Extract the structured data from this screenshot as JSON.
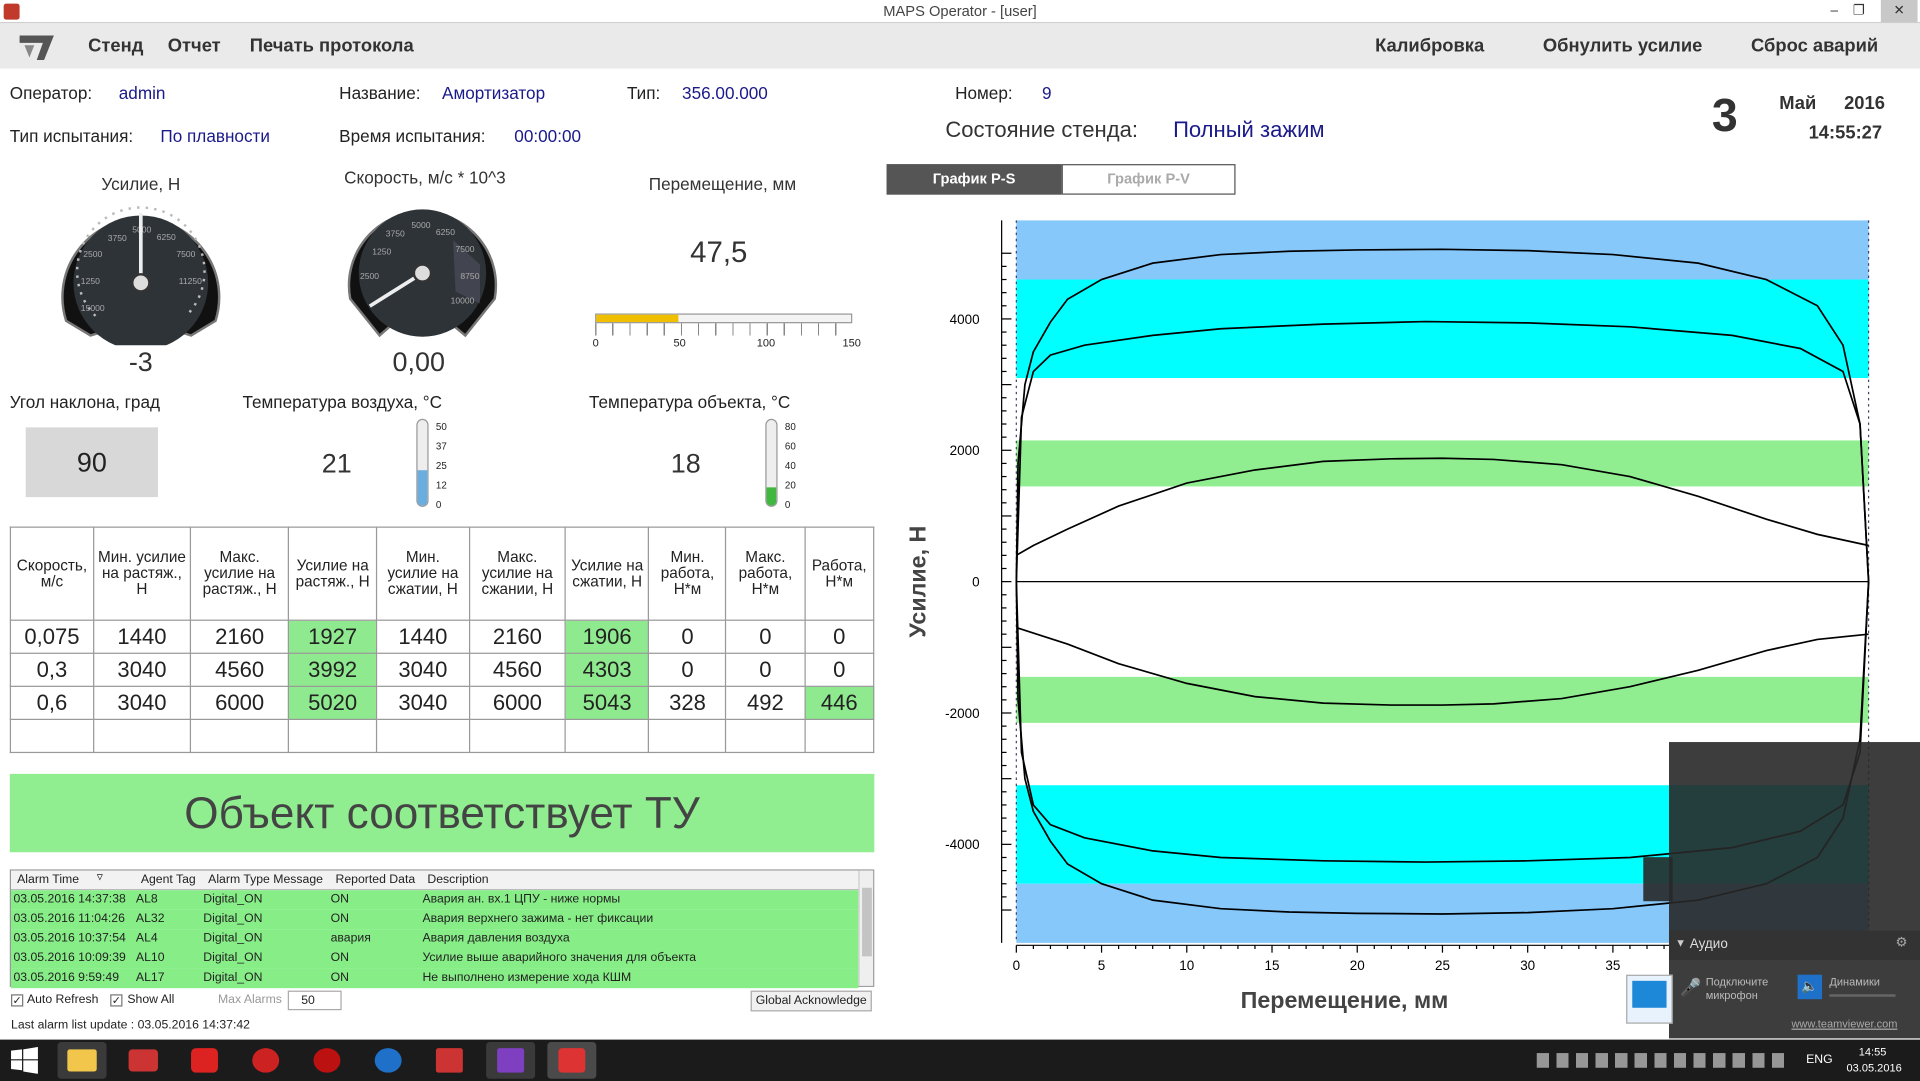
{
  "window": {
    "title": "MAPS Operator - [user]"
  },
  "menu": {
    "items": [
      "Стенд",
      "Отчет",
      "Печать протокола"
    ],
    "right": [
      "Калибровка",
      "Обнулить усилие",
      "Сброс аварий"
    ]
  },
  "info": {
    "operator_label": "Оператор:",
    "operator": "admin",
    "name_label": "Название:",
    "name": "Амортизатор",
    "type_label": "Тип:",
    "type": "356.00.000",
    "number_label": "Номер:",
    "number": "9",
    "test_type_label": "Тип испытания:",
    "test_type": "По плавности",
    "time_label": "Время испытания:",
    "time": "00:00:00",
    "state_label": "Состояние стенда:",
    "state": "Полный зажим"
  },
  "date": {
    "day": "3",
    "month": "Май",
    "year": "2016",
    "time": "14:55:27"
  },
  "gauges": {
    "force": {
      "title": "Усилие, Н",
      "value": "-3",
      "ticks": [
        "3750",
        "5000",
        "6250",
        "7500",
        "11250",
        "1250",
        "2500",
        "15000"
      ]
    },
    "speed": {
      "title": "Скорость, м/с * 10^3",
      "value": "0,00",
      "ticks": [
        "3750",
        "5000",
        "6250",
        "7500",
        "1250",
        "2500",
        "8750",
        "10000"
      ]
    },
    "move": {
      "title": "Перемещение, мм",
      "value": "47,5",
      "fill": 0.32,
      "ticks": [
        "0",
        "50",
        "100",
        "150"
      ]
    },
    "angle": {
      "title": "Угол наклона, град",
      "value": "90"
    },
    "air": {
      "title": "Температура воздуха, °C",
      "value": "21",
      "ticks": [
        "50",
        "37",
        "25",
        "12",
        "0"
      ],
      "fill": 0.42
    },
    "obj": {
      "title": "Температура объекта, °C",
      "value": "18",
      "ticks": [
        "80",
        "60",
        "40",
        "20",
        "0"
      ],
      "fill": 0.22
    }
  },
  "table": {
    "headers": [
      "Скорость, м/с",
      "Мин. усилие на растяж., Н",
      "Макс. усилие на растяж., Н",
      "Усилие на растяж., Н",
      "Мин. усилие на сжатии, Н",
      "Макс. усилие на сжании, Н",
      "Усилие на сжатии, Н",
      "Мин. работа, Н*м",
      "Макс. работа, Н*м",
      "Работа, Н*м"
    ],
    "rows": [
      [
        "0,075",
        "1440",
        "2160",
        "1927",
        "1440",
        "2160",
        "1906",
        "0",
        "0",
        "0"
      ],
      [
        "0,3",
        "3040",
        "4560",
        "3992",
        "3040",
        "4560",
        "4303",
        "0",
        "0",
        "0"
      ],
      [
        "0,6",
        "3040",
        "6000",
        "5020",
        "3040",
        "6000",
        "5043",
        "328",
        "492",
        "446"
      ],
      [
        "",
        "",
        "",
        "",
        "",
        "",
        "",
        "",
        "",
        ""
      ]
    ]
  },
  "verdict": "Объект соответствует ТУ",
  "alarms": {
    "headers": [
      "Alarm Time",
      "Agent Tag",
      "Alarm Type Message",
      "Reported Data",
      "Description"
    ],
    "rows": [
      [
        "03.05.2016 14:37:38",
        "AL8",
        "Digital_ON",
        "ON",
        "Авария ан. вх.1 ЦПУ - ниже нормы"
      ],
      [
        "03.05.2016 11:04:26",
        "AL32",
        "Digital_ON",
        "ON",
        "Авария верхнего зажима - нет фиксации"
      ],
      [
        "03.05.2016 10:37:54",
        "AL4",
        "Digital_ON",
        "авария",
        "Авария давления воздуха"
      ],
      [
        "03.05.2016 10:09:39",
        "AL10",
        "Digital_ON",
        "ON",
        "Усилие выше аварийного значения для объекта"
      ],
      [
        "03.05.2016 9:59:49",
        "AL17",
        "Digital_ON",
        "ON",
        "Не выполнено измерение хода КШМ"
      ]
    ],
    "auto_refresh": "Auto Refresh",
    "show_all": "Show All",
    "max_label": "Max Alarms",
    "max": "50",
    "ack": "Global Acknowledge",
    "last_update": "Last alarm list update : 03.05.2016 14:37:42"
  },
  "tabs": [
    "График P-S",
    "График P-V"
  ],
  "chart_data": {
    "type": "line",
    "xlabel": "Перемещение, мм",
    "ylabel": "Усилие, Н",
    "xlim": [
      0,
      50
    ],
    "ylim": [
      -5500,
      5500
    ],
    "xticks": [
      "0",
      "5",
      "10",
      "15",
      "20",
      "25",
      "30",
      "35"
    ],
    "yticks": [
      "4000",
      "2000",
      "0",
      "-2000",
      "-4000"
    ],
    "bands": [
      {
        "from": 4600,
        "to": 5500,
        "color": "#87c8fb"
      },
      {
        "from": 3100,
        "to": 4600,
        "color": "#00ffff"
      },
      {
        "from": 1450,
        "to": 2150,
        "color": "#90ee90"
      },
      {
        "from": -2150,
        "to": -1450,
        "color": "#90ee90"
      },
      {
        "from": -4600,
        "to": -3100,
        "color": "#00ffff"
      },
      {
        "from": -5500,
        "to": -4600,
        "color": "#87c8fb"
      }
    ],
    "series": [
      {
        "x": [
          0,
          0.1,
          0.5,
          1,
          2,
          3,
          5,
          8,
          12,
          16,
          20,
          25,
          30,
          35,
          40,
          44,
          47,
          48.5,
          49.5,
          50
        ],
        "y": [
          0,
          1800,
          3000,
          3500,
          3950,
          4300,
          4600,
          4850,
          4980,
          5030,
          5050,
          5060,
          5040,
          4980,
          4850,
          4600,
          4200,
          3600,
          2400,
          0
        ]
      },
      {
        "x": [
          0,
          0.3,
          1,
          2,
          4,
          8,
          12,
          18,
          24,
          30,
          36,
          42,
          46,
          48.5,
          49.5,
          50
        ],
        "y": [
          0,
          2500,
          3200,
          3450,
          3600,
          3750,
          3850,
          3920,
          3960,
          3940,
          3880,
          3750,
          3550,
          3200,
          2400,
          0
        ]
      },
      {
        "x": [
          0,
          1,
          3,
          6,
          10,
          14,
          18,
          22,
          25,
          28,
          32,
          36,
          40,
          44,
          47,
          50
        ],
        "y": [
          400,
          550,
          800,
          1150,
          1500,
          1700,
          1830,
          1870,
          1880,
          1860,
          1780,
          1600,
          1300,
          950,
          720,
          550
        ]
      },
      {
        "x": [
          0,
          0.1,
          0.5,
          1,
          2,
          3,
          5,
          8,
          12,
          16,
          20,
          25,
          30,
          35,
          40,
          44,
          47,
          48.5,
          49.5,
          50
        ],
        "y": [
          0,
          -1800,
          -3000,
          -3500,
          -3950,
          -4300,
          -4600,
          -4850,
          -4980,
          -5030,
          -5050,
          -5060,
          -5040,
          -4980,
          -4850,
          -4600,
          -4200,
          -3600,
          -2400,
          0
        ]
      },
      {
        "x": [
          0,
          0.3,
          1,
          2,
          4,
          8,
          12,
          18,
          24,
          30,
          36,
          42,
          46,
          48.5,
          49.5,
          50
        ],
        "y": [
          0,
          -2600,
          -3400,
          -3700,
          -3900,
          -4100,
          -4200,
          -4250,
          -4270,
          -4250,
          -4200,
          -4050,
          -3800,
          -3400,
          -2600,
          0
        ]
      },
      {
        "x": [
          0,
          3,
          6,
          10,
          14,
          18,
          22,
          25,
          28,
          32,
          36,
          40,
          44,
          47,
          50
        ],
        "y": [
          -700,
          -950,
          -1250,
          -1550,
          -1750,
          -1850,
          -1880,
          -1880,
          -1860,
          -1780,
          -1600,
          -1350,
          -1050,
          -880,
          -800
        ]
      }
    ]
  },
  "teamviewer": {
    "title": "Аудио",
    "mic": "Подключите микрофон",
    "spk": "Динамики",
    "url": "www.teamviewer.com"
  },
  "taskbar": {
    "lang": "ENG",
    "time": "14:55",
    "date": "03.05.2016"
  }
}
